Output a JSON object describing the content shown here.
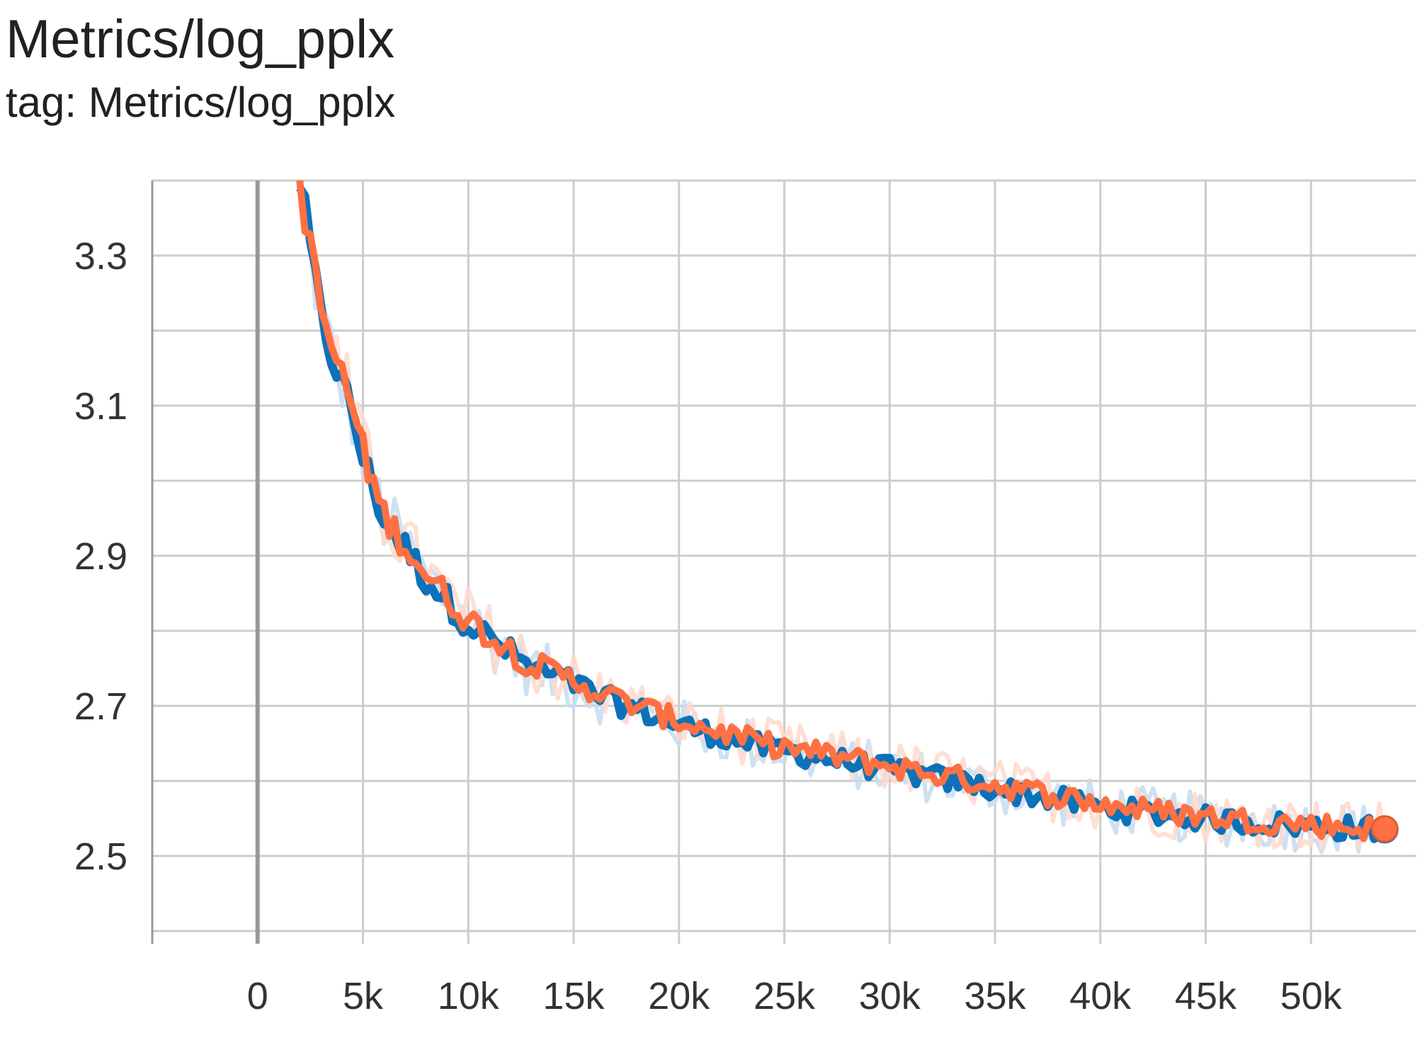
{
  "header": {
    "title": "Metrics/log_pplx",
    "subtitle": "tag: Metrics/log_pplx"
  },
  "colors": {
    "series_blue": "#0b72b9",
    "series_orange": "#ff7043",
    "grid": "#cccccc",
    "zero_line": "#999999"
  },
  "chart_data": {
    "type": "line",
    "title": "Metrics/log_pplx",
    "xlabel": "",
    "ylabel": "",
    "xlim": [
      -5000,
      55000
    ],
    "ylim": [
      2.4,
      3.4
    ],
    "x_ticks": [
      0,
      5000,
      10000,
      15000,
      20000,
      25000,
      30000,
      35000,
      40000,
      45000,
      50000
    ],
    "x_tick_labels": [
      "0",
      "5k",
      "10k",
      "15k",
      "20k",
      "25k",
      "30k",
      "35k",
      "40k",
      "45k",
      "50k"
    ],
    "y_ticks": [
      2.5,
      2.7,
      2.9,
      3.1,
      3.3
    ],
    "y_tick_labels": [
      "2.5",
      "2.7",
      "2.9",
      "3.1",
      "3.3"
    ],
    "grid": true,
    "legend": "none",
    "series": [
      {
        "color": "#0b72b9",
        "x": [
          2000,
          2500,
          3000,
          3500,
          4000,
          4500,
          5000,
          5500,
          6000,
          7000,
          8000,
          9000,
          10000,
          11000,
          12000,
          13000,
          14000,
          15000,
          16000,
          17000,
          18000,
          19000,
          20000,
          22000,
          24000,
          26000,
          28000,
          30000,
          32000,
          34000,
          36000,
          38000,
          40000,
          42000,
          44000,
          46000,
          48000,
          50000,
          52000,
          53500
        ],
        "values": [
          3.4,
          3.31,
          3.22,
          3.17,
          3.13,
          3.09,
          3.03,
          2.99,
          2.95,
          2.91,
          2.87,
          2.84,
          2.81,
          2.79,
          2.77,
          2.75,
          2.74,
          2.73,
          2.715,
          2.705,
          2.695,
          2.685,
          2.675,
          2.66,
          2.645,
          2.635,
          2.625,
          2.615,
          2.605,
          2.595,
          2.585,
          2.575,
          2.565,
          2.558,
          2.552,
          2.547,
          2.543,
          2.54,
          2.537,
          2.535
        ]
      },
      {
        "color": "#ff7043",
        "x": [
          2000,
          2500,
          3000,
          3500,
          4000,
          4500,
          5000,
          5500,
          6000,
          7000,
          8000,
          9000,
          10000,
          11000,
          12000,
          13000,
          14000,
          15000,
          16000,
          17000,
          18000,
          19000,
          20000,
          22000,
          24000,
          26000,
          28000,
          30000,
          32000,
          34000,
          36000,
          38000,
          40000,
          42000,
          44000,
          46000,
          48000,
          50000,
          52000,
          53500
        ],
        "values": [
          3.4,
          3.31,
          3.23,
          3.18,
          3.14,
          3.1,
          3.04,
          2.995,
          2.955,
          2.915,
          2.875,
          2.845,
          2.815,
          2.795,
          2.775,
          2.755,
          2.745,
          2.735,
          2.72,
          2.71,
          2.7,
          2.69,
          2.68,
          2.665,
          2.65,
          2.64,
          2.63,
          2.62,
          2.61,
          2.6,
          2.59,
          2.58,
          2.57,
          2.562,
          2.556,
          2.55,
          2.546,
          2.542,
          2.538,
          2.536
        ]
      }
    ]
  }
}
